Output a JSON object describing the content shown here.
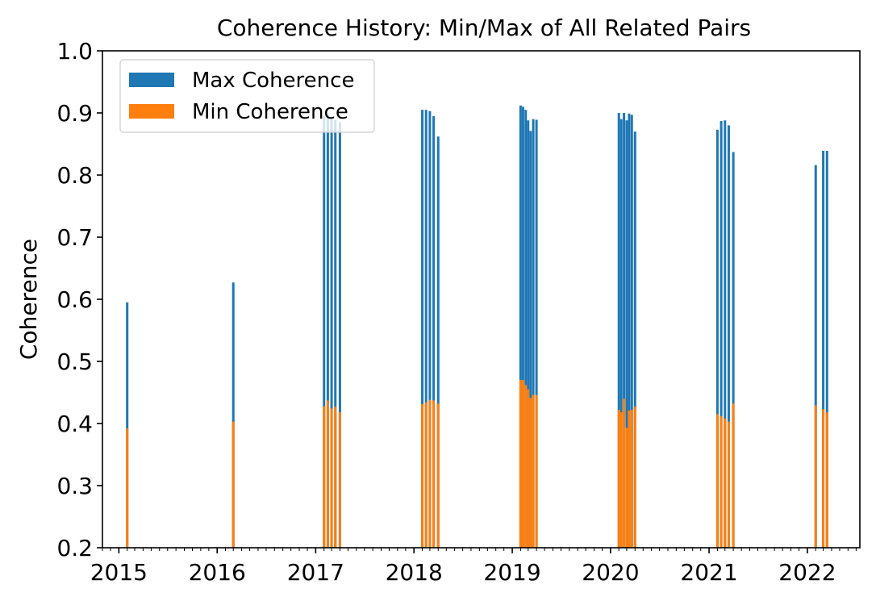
{
  "chart_data": {
    "type": "bar",
    "title": "Coherence History: Min/Max of All Related Pairs",
    "xlabel": "",
    "ylabel": "Coherence",
    "ylim": [
      0.2,
      1.0
    ],
    "xlim": [
      "2014-11-01",
      "2022-07-15"
    ],
    "yticks": [
      "0.2",
      "0.3",
      "0.4",
      "0.5",
      "0.6",
      "0.7",
      "0.8",
      "0.9",
      "1.0"
    ],
    "xticks": [
      "2015",
      "2016",
      "2017",
      "2018",
      "2019",
      "2020",
      "2021",
      "2022"
    ],
    "grid": false,
    "legend_position": "top-left",
    "series": [
      {
        "name": "Max Coherence",
        "color": "#1f77b4",
        "points": [
          {
            "x": "2015-02-01",
            "y": 0.595
          },
          {
            "x": "2016-03-01",
            "y": 0.627
          },
          {
            "x": "2017-02-01",
            "y": 0.895
          },
          {
            "x": "2017-02-15",
            "y": 0.897
          },
          {
            "x": "2017-03-01",
            "y": 0.89
          },
          {
            "x": "2017-03-15",
            "y": 0.889
          },
          {
            "x": "2017-04-01",
            "y": 0.885
          },
          {
            "x": "2018-02-01",
            "y": 0.905
          },
          {
            "x": "2018-02-15",
            "y": 0.905
          },
          {
            "x": "2018-03-01",
            "y": 0.903
          },
          {
            "x": "2018-03-15",
            "y": 0.895
          },
          {
            "x": "2018-04-01",
            "y": 0.862
          },
          {
            "x": "2019-02-01",
            "y": 0.912
          },
          {
            "x": "2019-02-10",
            "y": 0.91
          },
          {
            "x": "2019-02-20",
            "y": 0.905
          },
          {
            "x": "2019-03-01",
            "y": 0.888
          },
          {
            "x": "2019-03-10",
            "y": 0.871
          },
          {
            "x": "2019-03-20",
            "y": 0.89
          },
          {
            "x": "2019-04-01",
            "y": 0.889
          },
          {
            "x": "2020-02-01",
            "y": 0.9
          },
          {
            "x": "2020-02-10",
            "y": 0.89
          },
          {
            "x": "2020-02-20",
            "y": 0.9
          },
          {
            "x": "2020-03-01",
            "y": 0.888
          },
          {
            "x": "2020-03-10",
            "y": 0.899
          },
          {
            "x": "2020-03-20",
            "y": 0.897
          },
          {
            "x": "2020-04-01",
            "y": 0.87
          },
          {
            "x": "2021-02-01",
            "y": 0.873
          },
          {
            "x": "2021-02-15",
            "y": 0.887
          },
          {
            "x": "2021-03-01",
            "y": 0.888
          },
          {
            "x": "2021-03-15",
            "y": 0.88
          },
          {
            "x": "2021-04-01",
            "y": 0.837
          },
          {
            "x": "2022-02-01",
            "y": 0.816
          },
          {
            "x": "2022-03-01",
            "y": 0.839
          },
          {
            "x": "2022-03-15",
            "y": 0.839
          }
        ]
      },
      {
        "name": "Min Coherence",
        "color": "#ff7f0e",
        "points": [
          {
            "x": "2015-02-01",
            "y": 0.392
          },
          {
            "x": "2016-03-01",
            "y": 0.403
          },
          {
            "x": "2017-02-01",
            "y": 0.428
          },
          {
            "x": "2017-02-15",
            "y": 0.437
          },
          {
            "x": "2017-03-01",
            "y": 0.424
          },
          {
            "x": "2017-03-15",
            "y": 0.427
          },
          {
            "x": "2017-04-01",
            "y": 0.418
          },
          {
            "x": "2018-02-01",
            "y": 0.431
          },
          {
            "x": "2018-02-15",
            "y": 0.434
          },
          {
            "x": "2018-03-01",
            "y": 0.438
          },
          {
            "x": "2018-03-15",
            "y": 0.437
          },
          {
            "x": "2018-04-01",
            "y": 0.432
          },
          {
            "x": "2019-02-01",
            "y": 0.47
          },
          {
            "x": "2019-02-10",
            "y": 0.47
          },
          {
            "x": "2019-02-20",
            "y": 0.462
          },
          {
            "x": "2019-03-01",
            "y": 0.455
          },
          {
            "x": "2019-03-10",
            "y": 0.441
          },
          {
            "x": "2019-03-20",
            "y": 0.446
          },
          {
            "x": "2019-04-01",
            "y": 0.446
          },
          {
            "x": "2020-02-01",
            "y": 0.422
          },
          {
            "x": "2020-02-10",
            "y": 0.418
          },
          {
            "x": "2020-02-20",
            "y": 0.44
          },
          {
            "x": "2020-03-01",
            "y": 0.393
          },
          {
            "x": "2020-03-10",
            "y": 0.421
          },
          {
            "x": "2020-03-20",
            "y": 0.422
          },
          {
            "x": "2020-04-01",
            "y": 0.427
          },
          {
            "x": "2021-02-01",
            "y": 0.415
          },
          {
            "x": "2021-02-15",
            "y": 0.412
          },
          {
            "x": "2021-03-01",
            "y": 0.408
          },
          {
            "x": "2021-03-15",
            "y": 0.403
          },
          {
            "x": "2021-04-01",
            "y": 0.432
          },
          {
            "x": "2022-02-01",
            "y": 0.429
          },
          {
            "x": "2022-03-01",
            "y": 0.423
          },
          {
            "x": "2022-03-15",
            "y": 0.418
          }
        ]
      }
    ]
  }
}
